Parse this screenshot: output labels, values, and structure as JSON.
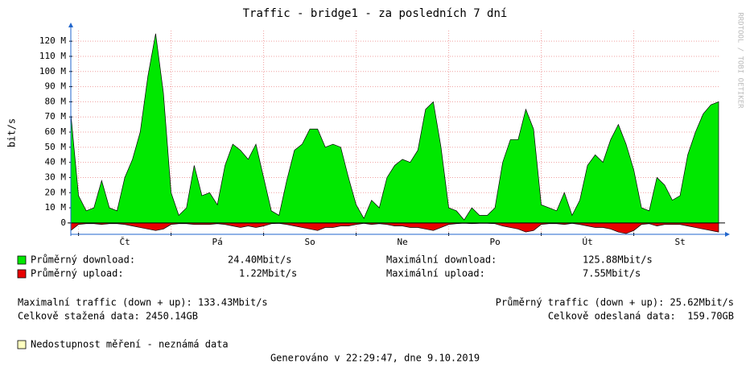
{
  "chart_data": {
    "type": "area",
    "title": "Traffic - bridge1 - za posledních 7 dní",
    "y_label": "bit/s",
    "watermark": "RRDTOOL / TOBI OETIKER",
    "categories": [
      null,
      null,
      null,
      null,
      null,
      null,
      null,
      "Čt",
      null,
      null,
      null,
      null,
      null,
      null,
      null,
      null,
      null,
      null,
      null,
      "Pá",
      null,
      null,
      null,
      null,
      null,
      null,
      null,
      null,
      null,
      null,
      null,
      "So",
      null,
      null,
      null,
      null,
      null,
      null,
      null,
      null,
      null,
      null,
      null,
      "Ne",
      null,
      null,
      null,
      null,
      null,
      null,
      null,
      null,
      null,
      null,
      null,
      "Po",
      null,
      null,
      null,
      null,
      null,
      null,
      null,
      null,
      null,
      null,
      null,
      "Út",
      null,
      null,
      null,
      null,
      null,
      null,
      null,
      null,
      null,
      null,
      null,
      "St",
      null,
      null,
      null,
      null,
      null
    ],
    "series": [
      {
        "name": "Průměrný download:",
        "color": "#00e800",
        "avg": "24.40Mbit/s",
        "max_label": "Maximální download:",
        "max": "125.88Mbit/s",
        "values": [
          72000000,
          18000000,
          8000000,
          10000000,
          28000000,
          10000000,
          8000000,
          30000000,
          42000000,
          60000000,
          97000000,
          125000000,
          86000000,
          20000000,
          5000000,
          10000000,
          38000000,
          18000000,
          20000000,
          12000000,
          38000000,
          52000000,
          48000000,
          42000000,
          52000000,
          30000000,
          8000000,
          5000000,
          28000000,
          48000000,
          52000000,
          62000000,
          62000000,
          50000000,
          52000000,
          50000000,
          30000000,
          12000000,
          3000000,
          15000000,
          10000000,
          30000000,
          38000000,
          42000000,
          40000000,
          48000000,
          75000000,
          80000000,
          50000000,
          10000000,
          8000000,
          2000000,
          10000000,
          5000000,
          5000000,
          10000000,
          40000000,
          55000000,
          55000000,
          75000000,
          62000000,
          12000000,
          10000000,
          8000000,
          20000000,
          5000000,
          15000000,
          38000000,
          45000000,
          40000000,
          55000000,
          65000000,
          52000000,
          35000000,
          10000000,
          8000000,
          30000000,
          25000000,
          15000000,
          18000000,
          45000000,
          60000000,
          72000000,
          78000000,
          80000000
        ]
      },
      {
        "name": "Průměrný upload:",
        "color": "#e80000",
        "avg": "1.22Mbit/s",
        "max_label": "Maximální upload:",
        "max": "7.55Mbit/s",
        "values": [
          -5000000,
          -1000000,
          -500000,
          -500000,
          -1000000,
          -500000,
          -500000,
          -1000000,
          -2000000,
          -3000000,
          -4000000,
          -5000000,
          -4000000,
          -1000000,
          -500000,
          -500000,
          -1000000,
          -1000000,
          -1000000,
          -500000,
          -1000000,
          -2000000,
          -3000000,
          -2000000,
          -3000000,
          -2000000,
          -500000,
          -300000,
          -1000000,
          -2000000,
          -3000000,
          -4000000,
          -5000000,
          -3000000,
          -3000000,
          -2000000,
          -2000000,
          -1000000,
          -300000,
          -1000000,
          -500000,
          -1000000,
          -2000000,
          -2000000,
          -3000000,
          -3000000,
          -4000000,
          -5000000,
          -3000000,
          -1000000,
          -500000,
          -200000,
          -500000,
          -300000,
          -300000,
          -500000,
          -2000000,
          -3000000,
          -4000000,
          -6000000,
          -5000000,
          -1000000,
          -500000,
          -500000,
          -1000000,
          -300000,
          -1000000,
          -2000000,
          -3000000,
          -3000000,
          -4000000,
          -6000000,
          -7000000,
          -5000000,
          -1000000,
          -500000,
          -2000000,
          -1000000,
          -1000000,
          -1000000,
          -2000000,
          -3000000,
          -4000000,
          -5000000,
          -6000000
        ]
      }
    ],
    "ylim": [
      -7500000,
      127000000
    ],
    "yticks": [
      0,
      {
        "value": 10000000,
        "label": "10 M"
      },
      {
        "value": 20000000,
        "label": "20 M"
      },
      {
        "value": 30000000,
        "label": "30 M"
      },
      {
        "value": 40000000,
        "label": "40 M"
      },
      {
        "value": 50000000,
        "label": "50 M"
      },
      {
        "value": 60000000,
        "label": "60 M"
      },
      {
        "value": 70000000,
        "label": "70 M"
      },
      {
        "value": 80000000,
        "label": "80 M"
      },
      {
        "value": 90000000,
        "label": "90 M"
      },
      {
        "value": 100000000,
        "label": "100 M"
      },
      {
        "value": 110000000,
        "label": "110 M"
      },
      {
        "value": 120000000,
        "label": "120 M"
      }
    ],
    "grid": true,
    "summary_left": [
      "Maximalní traffic (down + up): 133.43Mbit/s",
      "Celkově stažená data: 2450.14GB"
    ],
    "summary_right": [
      "Průměrný traffic (down + up): 25.62Mbit/s",
      "Celkově odeslaná data:  159.70GB"
    ],
    "unknown": {
      "label": "Nedostupnost měření - neznámá data",
      "color": "#ffffc0"
    },
    "generated": "Generováno v 22:29:47, dne 9.10.2019"
  }
}
